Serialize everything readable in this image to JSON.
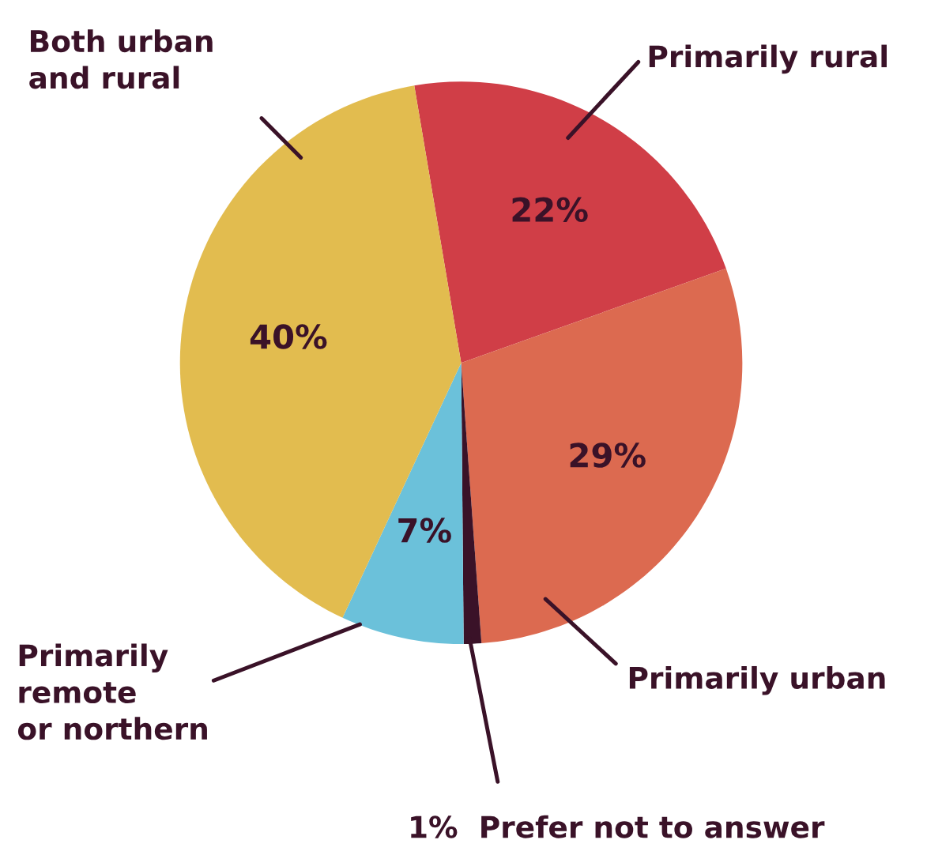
{
  "chart_data": {
    "type": "pie",
    "categories": [
      "Primarily rural",
      "Primarily urban",
      "Prefer not to answer",
      "Primarily\nremote\nor northern",
      "Both urban\nand rural"
    ],
    "values": [
      22,
      29,
      1,
      7,
      40
    ],
    "colors": [
      "#d03e47",
      "#dc6a50",
      "#3a1228",
      "#6bc1da",
      "#e2bc4f"
    ],
    "value_labels": [
      "22%",
      "29%",
      "1%",
      "7%",
      "40%"
    ]
  }
}
